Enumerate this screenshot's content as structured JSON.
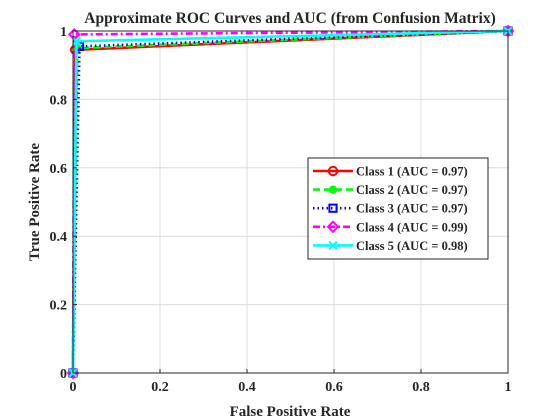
{
  "chart_data": {
    "type": "line",
    "title": "Approximate ROC Curves and AUC (from Confusion Matrix)",
    "xlabel": "False Positive Rate",
    "ylabel": "True Positive Rate",
    "xlim": [
      0,
      1
    ],
    "ylim": [
      0,
      1
    ],
    "xticks": [
      "0",
      "0.2",
      "0.4",
      "0.6",
      "0.8",
      "1"
    ],
    "yticks": [
      "0",
      "0.2",
      "0.4",
      "0.6",
      "0.8",
      "1"
    ],
    "grid": true,
    "legend_position": "center-right",
    "series": [
      {
        "name": "Class 1 (AUC = 0.97)",
        "color": "#ff0000",
        "dash": "solid",
        "marker": "circle",
        "points": [
          [
            0,
            0
          ],
          [
            0.005,
            0.945
          ],
          [
            1,
            1
          ]
        ]
      },
      {
        "name": "Class 2 (AUC = 0.97)",
        "color": "#00ff00",
        "dash": "dashed",
        "marker": "dot",
        "points": [
          [
            0,
            0
          ],
          [
            0.01,
            0.95
          ],
          [
            1,
            1
          ]
        ]
      },
      {
        "name": "Class 3 (AUC = 0.97)",
        "color": "#0000ff",
        "dash": "dotted",
        "marker": "square",
        "points": [
          [
            0,
            0
          ],
          [
            0.015,
            0.955
          ],
          [
            1,
            1
          ]
        ]
      },
      {
        "name": "Class 4 (AUC = 0.99)",
        "color": "#ff00ff",
        "dash": "dashdot",
        "marker": "diamond",
        "points": [
          [
            0,
            0
          ],
          [
            0.003,
            0.99
          ],
          [
            1,
            1
          ]
        ]
      },
      {
        "name": "Class 5 (AUC = 0.98)",
        "color": "#00ffff",
        "dash": "solid",
        "marker": "x",
        "points": [
          [
            0,
            0
          ],
          [
            0.008,
            0.97
          ],
          [
            1,
            1
          ]
        ]
      }
    ]
  }
}
